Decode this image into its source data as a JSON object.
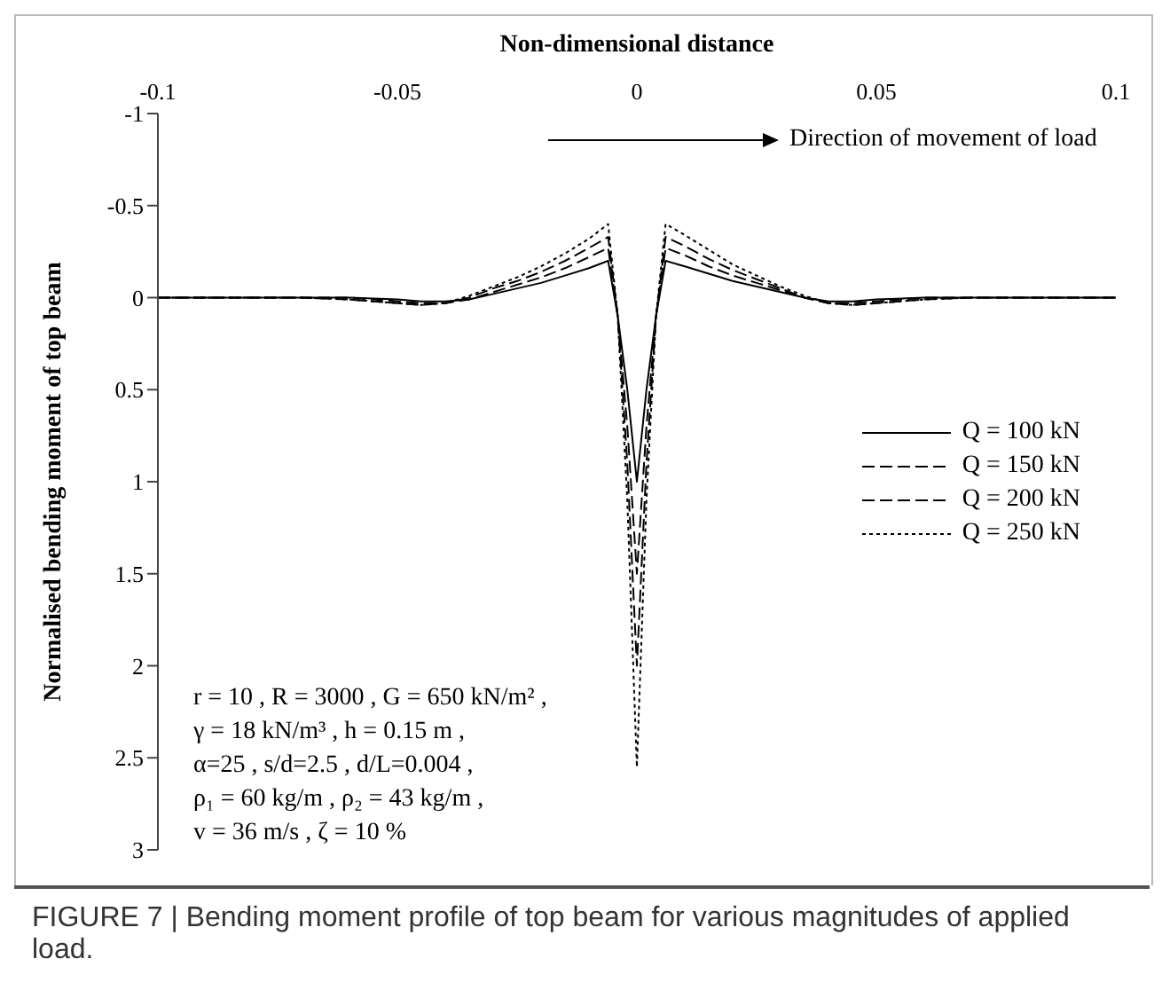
{
  "chart_data": {
    "type": "line",
    "xlabel": "Non-dimensional distance",
    "ylabel": "Normalised bending moment of top beam",
    "x": [
      -0.1,
      -0.09,
      -0.08,
      -0.07,
      -0.06,
      -0.05,
      -0.045,
      -0.04,
      -0.035,
      -0.03,
      -0.025,
      -0.02,
      -0.015,
      -0.01,
      -0.006,
      -0.004,
      -0.002,
      0,
      0.002,
      0.004,
      0.006,
      0.01,
      0.015,
      0.02,
      0.025,
      0.03,
      0.035,
      0.04,
      0.045,
      0.05,
      0.06,
      0.07,
      0.08,
      0.09,
      0.1
    ],
    "series": [
      {
        "name": "Q = 100 kN",
        "color": "#000000",
        "line_style": "solid",
        "values": [
          0,
          0,
          0,
          0,
          0,
          0.01,
          0.02,
          0.02,
          0.01,
          -0.02,
          -0.05,
          -0.08,
          -0.12,
          -0.16,
          -0.2,
          0.1,
          0.5,
          1.0,
          0.5,
          0.1,
          -0.2,
          -0.17,
          -0.13,
          -0.09,
          -0.06,
          -0.03,
          0,
          0.02,
          0.02,
          0.01,
          0,
          0,
          0,
          0,
          0
        ]
      },
      {
        "name": "Q = 150 kN",
        "color": "#000000",
        "line_style": "dashed",
        "values": [
          0,
          0,
          0,
          0,
          0,
          0.02,
          0.03,
          0.03,
          0.01,
          -0.03,
          -0.07,
          -0.11,
          -0.16,
          -0.22,
          -0.27,
          0.1,
          0.7,
          1.5,
          0.7,
          0.1,
          -0.27,
          -0.23,
          -0.17,
          -0.12,
          -0.08,
          -0.04,
          0,
          0.03,
          0.03,
          0.02,
          0,
          0,
          0,
          0,
          0
        ]
      },
      {
        "name": "Q = 200 kN",
        "color": "#000000",
        "line_style": "dashed",
        "values": [
          0,
          0,
          0,
          0,
          0.01,
          0.03,
          0.04,
          0.03,
          0,
          -0.05,
          -0.09,
          -0.14,
          -0.2,
          -0.27,
          -0.33,
          0.1,
          0.9,
          2.0,
          0.9,
          0.1,
          -0.33,
          -0.28,
          -0.21,
          -0.15,
          -0.1,
          -0.05,
          0,
          0.03,
          0.04,
          0.03,
          0.01,
          0,
          0,
          0,
          0
        ]
      },
      {
        "name": "Q = 250 kN",
        "color": "#000000",
        "line_style": "dotted",
        "values": [
          0,
          0,
          0,
          0,
          0.01,
          0.03,
          0.04,
          0.03,
          -0.01,
          -0.06,
          -0.11,
          -0.17,
          -0.24,
          -0.32,
          -0.4,
          0.1,
          1.1,
          2.55,
          1.1,
          0.1,
          -0.4,
          -0.34,
          -0.26,
          -0.18,
          -0.12,
          -0.06,
          -0.01,
          0.03,
          0.04,
          0.03,
          0.01,
          0,
          0,
          0,
          0
        ]
      }
    ],
    "xlim": [
      -0.1,
      0.1
    ],
    "xticks": [
      -0.1,
      -0.05,
      0,
      0.05,
      0.1
    ],
    "ylim": [
      3,
      -1
    ],
    "yticks": [
      3,
      2.5,
      2,
      1.5,
      1,
      0.5,
      0,
      -0.5,
      -1
    ],
    "legend": "right",
    "marker": "none",
    "annotations": [
      "Direction of movement of load",
      "r = 10 , R = 3000 , G = 650 kN/m² ,",
      "γ = 18 kN/m³ , h = 0.15 m ,",
      "α=25 ,  s/d=2.5 , d/L=0.004 ,",
      "ρ₁ = 60 kg/m , ρ₂ = 43 kg/m ,",
      "v = 36 m/s , ζ = 10 %",
      "FIGURE 7 | Bending moment profile of top beam for various magnitudes of applied load."
    ]
  }
}
